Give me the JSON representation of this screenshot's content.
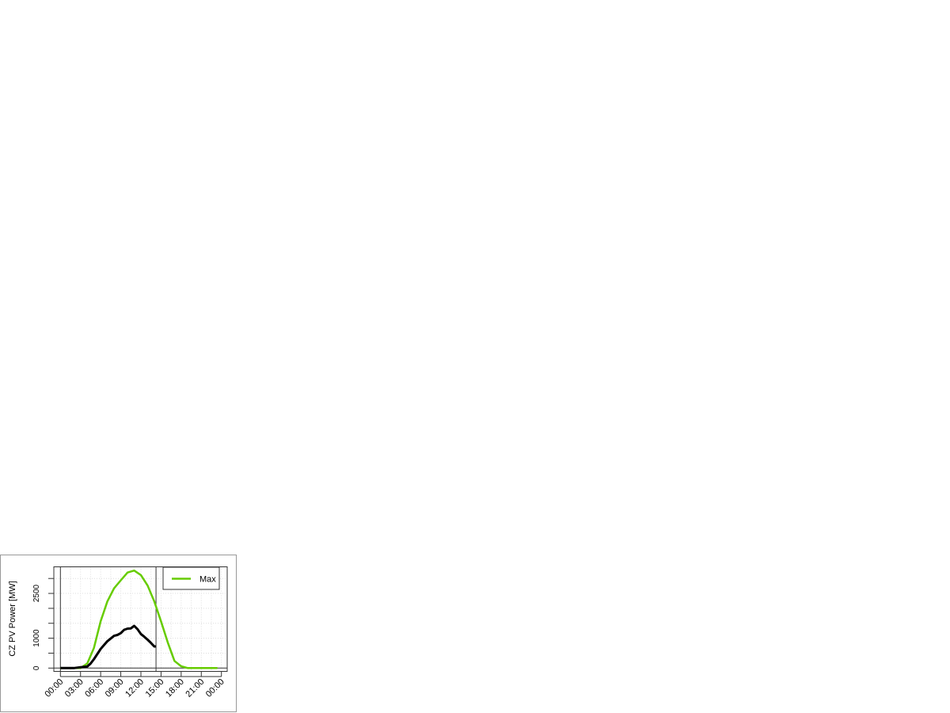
{
  "chart_data": {
    "type": "line",
    "ylabel": "CZ PV Power [MW]",
    "xlabel": "",
    "x_tick_labels": [
      "00:00",
      "03:00",
      "06:00",
      "09:00",
      "12:00",
      "15:00",
      "18:00",
      "21:00",
      "00:00"
    ],
    "y_tick_labels": [
      "0",
      "1000",
      "2500"
    ],
    "y_ticks": [
      0,
      500,
      1000,
      1500,
      2000,
      2500,
      3000
    ],
    "xlim_hours": [
      -1,
      25.5
    ],
    "ylim": [
      -120,
      3400
    ],
    "grid": true,
    "legend_position": "top-right",
    "vertical_markers_hours": [
      0,
      14.25
    ],
    "series": [
      {
        "name": "Max",
        "color": "#66cc00",
        "x": [
          0,
          1,
          2,
          3,
          4,
          5,
          6,
          7,
          8,
          9,
          10,
          11,
          12,
          13,
          14,
          15,
          16,
          17,
          18,
          19,
          20,
          21,
          22,
          23,
          23.4
        ],
        "y": [
          0,
          0,
          0,
          0,
          150,
          680,
          1566,
          2230,
          2670,
          2938,
          3200,
          3265,
          3115,
          2760,
          2230,
          1566,
          860,
          240,
          60,
          0,
          0,
          0,
          0,
          0,
          0
        ]
      },
      {
        "color": "#000000",
        "x": [
          0,
          1,
          2,
          3,
          4,
          4.5,
          5,
          6,
          7,
          8,
          8.5,
          9,
          9.5,
          10,
          10.5,
          11,
          11.5,
          12,
          12.5,
          13,
          13.5,
          14,
          14.25
        ],
        "y": [
          0,
          0,
          0,
          30,
          50,
          150,
          300,
          640,
          900,
          1080,
          1110,
          1170,
          1280,
          1320,
          1330,
          1415,
          1300,
          1140,
          1050,
          950,
          840,
          725,
          725
        ]
      }
    ]
  }
}
